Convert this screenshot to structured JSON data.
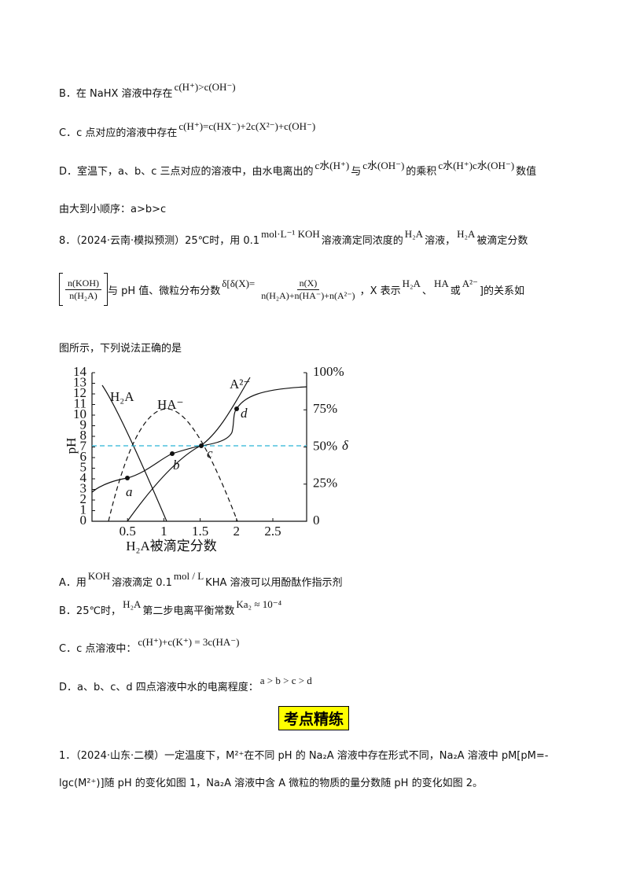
{
  "lines_prev": [
    [
      {
        "text": "B．在 NaHX 溶液中存在"
      },
      {
        "math": "c(H⁺)>c(OH⁻)"
      }
    ],
    [
      {
        "text": "C．c 点对应的溶液中存在"
      },
      {
        "math": "c(H⁺)=c(HX⁻)+2c(X²⁻)+c(OH⁻)"
      }
    ],
    [
      {
        "text": "D．室温下，a、b、c 三点对应的溶液中，由水电离出的"
      },
      {
        "math": "c水(H⁺)"
      },
      {
        "text": "与"
      },
      {
        "math": "c水(OH⁻)"
      },
      {
        "text": "的乘积"
      },
      {
        "math": "c水(H⁺)c水(OH⁻)"
      },
      {
        "text": "数值"
      }
    ],
    [
      {
        "text": "由大到小顺序：a>b>c"
      }
    ]
  ],
  "question8": {
    "line1": [
      {
        "text": "8．（2024·云南·模拟预测）25℃时，用 0.1"
      },
      {
        "math": "mol·L⁻¹ KOH"
      },
      {
        "text": "溶液滴定同浓度的"
      },
      {
        "math": "H₂A"
      },
      {
        "text": "溶液，"
      },
      {
        "math": "H₂A"
      },
      {
        "text": "被滴定分数"
      }
    ],
    "line2": [
      {
        "num": "n(KOH)",
        "den": "n(H₂A)"
      },
      {
        "text": "与 pH 值、微粒分布分数"
      },
      {
        "math": "δ[δ(X)="
      },
      {
        "num": "n(X)",
        "den": "n(H₂A)+n(HA⁻)+n(A²⁻)"
      },
      {
        "text": "，X 表示"
      },
      {
        "math": "H₂A"
      },
      {
        "text": "、"
      },
      {
        "math": "HA"
      },
      {
        "text": " 或 "
      },
      {
        "math": "A²⁻"
      },
      {
        "text": "]的关系如"
      }
    ],
    "line3": [
      {
        "text": "图所示，下列说法正确的是"
      }
    ]
  },
  "figure": {
    "y_ticks": [
      "0",
      "1",
      "2",
      "3",
      "4",
      "5",
      "6",
      "7",
      "8",
      "9",
      "10",
      "11",
      "12",
      "13",
      "14"
    ],
    "y2_ticks": [
      "0",
      "25%",
      "50%",
      "75%",
      "100%"
    ],
    "y2_symbol": "δ",
    "x_ticks": [
      "0.5",
      "1",
      "1.5",
      "2",
      "2.5"
    ],
    "y_label": "pH",
    "x_label": "H₂A被滴定分数",
    "curve_labels": [
      "H₂A",
      "HA⁻",
      "A²⁻"
    ],
    "point_labels": [
      "a",
      "b",
      "c",
      "d"
    ]
  },
  "options": [
    [
      {
        "text": "A．用"
      },
      {
        "math": "KOH"
      },
      {
        "text": "溶液滴定 0.1"
      },
      {
        "math": "mol / L"
      },
      {
        "text": " KHA 溶液可以用酚酞作指示剂"
      }
    ],
    [
      {
        "text": "B．25℃时，"
      },
      {
        "math": "H₂A"
      },
      {
        "text": "第二步电离平衡常数"
      },
      {
        "math": "Ka₂ ≈ 10⁻⁴"
      }
    ],
    [
      {
        "text": "C．c 点溶液中："
      },
      {
        "math": "c(H⁺)+c(K⁺) = 3c(HA⁻)"
      }
    ],
    [
      {
        "text": "D．a、b、c、d 四点溶液中水的电离程度："
      },
      {
        "math": "a > b > c > d"
      }
    ]
  ],
  "section_title": "考点精练",
  "question1": [
    [
      {
        "text": "1．（2024·山东·二模）一定温度下，M²⁺在不同 pH 的 Na₂A 溶液中存在形式不同，Na₂A 溶液中 pM[pM=-"
      }
    ],
    [
      {
        "text": "lgc(M²⁺)]随 pH 的变化如图 1，Na₂A 溶液中含 A 微粒的物质的量分数随 pH 的变化如图 2。"
      }
    ]
  ]
}
